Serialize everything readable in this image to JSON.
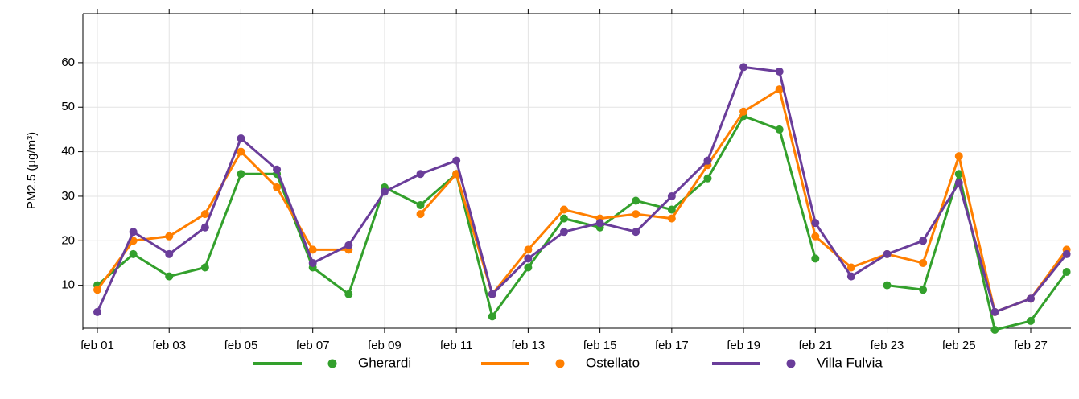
{
  "chart_data": {
    "type": "line",
    "y_label": "PM2.5 (µg/m³)",
    "categories": [
      "feb 01",
      null,
      "feb 03",
      null,
      "feb 05",
      null,
      "feb 07",
      null,
      "feb 09",
      null,
      "feb 11",
      null,
      "feb 13",
      null,
      "feb 15",
      null,
      "feb 17",
      null,
      "feb 19",
      null,
      "feb 21",
      null,
      "feb 23",
      null,
      "feb 25",
      null,
      "feb 27",
      null
    ],
    "series": [
      {
        "name": "Gherardi",
        "color": "#33a02c",
        "values": [
          10,
          17,
          12,
          14,
          35,
          35,
          14,
          8,
          32,
          28,
          35,
          3,
          14,
          25,
          23,
          29,
          27,
          34,
          48,
          45,
          16,
          null,
          10,
          9,
          35,
          0,
          2,
          13
        ]
      },
      {
        "name": "Ostellato",
        "color": "#ff7f00",
        "values": [
          9,
          20,
          21,
          26,
          40,
          32,
          18,
          18,
          null,
          26,
          35,
          8,
          18,
          27,
          25,
          26,
          25,
          37,
          49,
          54,
          21,
          14,
          17,
          15,
          39,
          4,
          7,
          18
        ]
      },
      {
        "name": "Villa Fulvia",
        "color": "#6a3d9a",
        "values": [
          4,
          22,
          17,
          23,
          43,
          36,
          15,
          19,
          31,
          35,
          38,
          8,
          16,
          22,
          24,
          22,
          30,
          38,
          59,
          58,
          24,
          12,
          17,
          20,
          33,
          4,
          7,
          17
        ]
      }
    ],
    "ylim": [
      0,
      71
    ],
    "yticks": [
      10,
      20,
      30,
      40,
      50,
      60
    ],
    "grid": true,
    "legend": "bottom"
  }
}
